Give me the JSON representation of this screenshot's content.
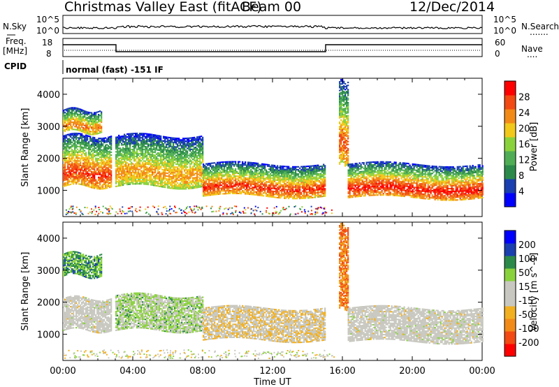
{
  "header": {
    "station": "Christmas Valley East (fitACF)",
    "beam": "Beam 00",
    "date": "12/Dec/2014"
  },
  "aux_panels": {
    "nsky_label": "N.Sky",
    "nsearch_label": "N.Search",
    "nsky_ticks": [
      "10^5",
      "10^0"
    ],
    "nsearch_ticks": [
      "10^5",
      "10^0"
    ],
    "freq_label": "Freq.",
    "freq_unit": "[MHz]",
    "freq_ticks": [
      "18",
      "8"
    ],
    "nave_label": "Nave",
    "nave_ticks": [
      "60",
      "0"
    ],
    "cpid_label": "CPID",
    "cpid_text": "normal (fast) -151 IF"
  },
  "colors": {
    "power_scale": [
      "#0000ff",
      "#1a3fb0",
      "#2b8a4a",
      "#4fae55",
      "#8ad23c",
      "#f2c81a",
      "#f28a18",
      "#f24a12",
      "#ff0000"
    ],
    "velocity_scale": [
      "#ff0000",
      "#f24a12",
      "#f28a18",
      "#f2b020",
      "#c8c8c0",
      "#c8c8c0",
      "#8ad23c",
      "#2b8a4a",
      "#1a3fb0",
      "#0000ff"
    ]
  },
  "chart_data": [
    {
      "type": "heatmap",
      "title": "Power",
      "ylabel": "Slant Range [km]",
      "xlabel": "Time UT",
      "colorbar_label": "Power [dB]",
      "colorbar_ticks": [
        "28",
        "24",
        "20",
        "16",
        "12",
        "8",
        "4"
      ],
      "colorbar_range": [
        0,
        32
      ],
      "xlim": [
        "00:00",
        "24:00"
      ],
      "x_ticks": [
        "00:00",
        "04:00",
        "08:00",
        "12:00",
        "16:00",
        "20:00",
        "00:00"
      ],
      "ylim": [
        180,
        4500
      ],
      "y_ticks": [
        "1000",
        "2000",
        "3000",
        "4000"
      ],
      "echo_bands": [
        {
          "t_start": 0.0,
          "t_end": 2.8,
          "r_low": 1100,
          "r_high": 2700,
          "max_power": 30
        },
        {
          "t_start": 0.0,
          "t_end": 2.2,
          "r_low": 2800,
          "r_high": 3500,
          "max_power": 26
        },
        {
          "t_start": 3.0,
          "t_end": 8.0,
          "r_low": 1100,
          "r_high": 2700,
          "max_power": 24
        },
        {
          "t_start": 8.0,
          "t_end": 15.0,
          "r_low": 800,
          "r_high": 1800,
          "max_power": 30
        },
        {
          "t_start": 15.8,
          "t_end": 16.3,
          "r_low": 1800,
          "r_high": 4400,
          "max_power": 28
        },
        {
          "t_start": 16.3,
          "t_end": 24.0,
          "r_low": 750,
          "r_high": 1800,
          "max_power": 32
        }
      ]
    },
    {
      "type": "heatmap",
      "title": "Velocity",
      "ylabel": "Slant Range [km]",
      "xlabel": "Time UT",
      "colorbar_label": "Velocity [m s^-1]",
      "colorbar_ticks": [
        "200",
        "100",
        "50",
        "15",
        "-15",
        "-50",
        "-100",
        "-200"
      ],
      "colorbar_range": [
        -250,
        250
      ],
      "xlim": [
        "00:00",
        "24:00"
      ],
      "x_ticks": [
        "00:00",
        "04:00",
        "08:00",
        "12:00",
        "16:00",
        "20:00",
        "00:00"
      ],
      "ylim": [
        180,
        4500
      ],
      "y_ticks": [
        "1000",
        "2000",
        "3000",
        "4000"
      ],
      "echo_bands": [
        {
          "t_start": 0.0,
          "t_end": 2.8,
          "r_low": 1100,
          "r_high": 2100,
          "velocity": 0
        },
        {
          "t_start": 0.0,
          "t_end": 2.2,
          "r_low": 2800,
          "r_high": 3500,
          "velocity": 120
        },
        {
          "t_start": 3.0,
          "t_end": 8.0,
          "r_low": 1100,
          "r_high": 2200,
          "velocity": 60
        },
        {
          "t_start": 8.0,
          "t_end": 15.0,
          "r_low": 800,
          "r_high": 1800,
          "velocity": -40
        },
        {
          "t_start": 15.8,
          "t_end": 16.3,
          "r_low": 1800,
          "r_high": 4400,
          "velocity": -150
        },
        {
          "t_start": 16.3,
          "t_end": 24.0,
          "r_low": 750,
          "r_high": 1800,
          "velocity": 0
        }
      ]
    }
  ]
}
